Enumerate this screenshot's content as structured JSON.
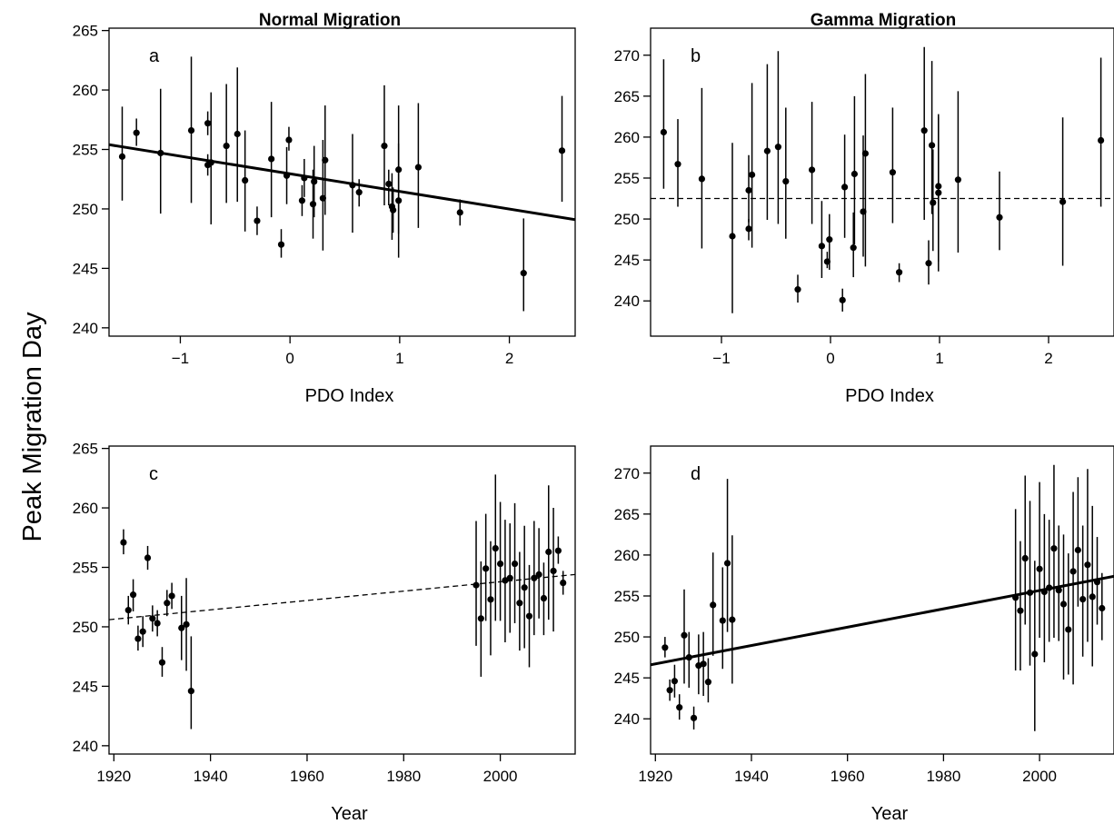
{
  "figure": {
    "ylabel": "Peak Migration Day"
  },
  "chart_data": [
    {
      "id": "a",
      "type": "scatter",
      "title": "Normal Migration",
      "panel_label": "a",
      "xlabel": "PDO Index",
      "ylabel": "Peak Migration Day",
      "xlim": [
        -1.65,
        2.6
      ],
      "ylim": [
        239.3,
        265.2
      ],
      "xticks": [
        -1,
        0,
        1,
        2
      ],
      "yticks": [
        240,
        245,
        250,
        255,
        260,
        265
      ],
      "grid": false,
      "points": [
        {
          "x": -1.53,
          "y": 254.4,
          "lo": 250.7,
          "hi": 258.6
        },
        {
          "x": -1.4,
          "y": 256.4,
          "lo": 255.3,
          "hi": 257.6
        },
        {
          "x": -1.18,
          "y": 254.7,
          "lo": 249.6,
          "hi": 260.1
        },
        {
          "x": -0.9,
          "y": 256.6,
          "lo": 250.5,
          "hi": 262.8
        },
        {
          "x": -0.75,
          "y": 257.2,
          "lo": 256.2,
          "hi": 258.2
        },
        {
          "x": -0.75,
          "y": 253.7,
          "lo": 252.8,
          "hi": 254.6
        },
        {
          "x": -0.72,
          "y": 253.9,
          "lo": 248.7,
          "hi": 259.8
        },
        {
          "x": -0.58,
          "y": 255.3,
          "lo": 250.5,
          "hi": 260.5
        },
        {
          "x": -0.48,
          "y": 256.3,
          "lo": 250.6,
          "hi": 261.9
        },
        {
          "x": -0.41,
          "y": 252.4,
          "lo": 248.1,
          "hi": 256.6
        },
        {
          "x": -0.3,
          "y": 249.0,
          "lo": 247.8,
          "hi": 250.2
        },
        {
          "x": -0.17,
          "y": 254.2,
          "lo": 249.3,
          "hi": 259.0
        },
        {
          "x": -0.08,
          "y": 247.0,
          "lo": 245.9,
          "hi": 248.3
        },
        {
          "x": -0.03,
          "y": 252.8,
          "lo": 250.4,
          "hi": 255.2
        },
        {
          "x": -0.01,
          "y": 255.8,
          "lo": 254.9,
          "hi": 256.9
        },
        {
          "x": 0.11,
          "y": 250.7,
          "lo": 249.4,
          "hi": 252.0
        },
        {
          "x": 0.13,
          "y": 252.6,
          "lo": 251.0,
          "hi": 254.2
        },
        {
          "x": 0.21,
          "y": 250.4,
          "lo": 247.5,
          "hi": 253.3
        },
        {
          "x": 0.22,
          "y": 252.3,
          "lo": 249.3,
          "hi": 255.3
        },
        {
          "x": 0.3,
          "y": 250.9,
          "lo": 246.5,
          "hi": 255.8
        },
        {
          "x": 0.32,
          "y": 254.1,
          "lo": 249.5,
          "hi": 258.7
        },
        {
          "x": 0.57,
          "y": 252.0,
          "lo": 248.0,
          "hi": 256.3
        },
        {
          "x": 0.63,
          "y": 251.4,
          "lo": 250.2,
          "hi": 252.5
        },
        {
          "x": 0.86,
          "y": 255.3,
          "lo": 250.3,
          "hi": 260.4
        },
        {
          "x": 0.9,
          "y": 252.1,
          "lo": 250.3,
          "hi": 253.3
        },
        {
          "x": 0.93,
          "y": 250.2,
          "lo": 247.4,
          "hi": 253.0
        },
        {
          "x": 0.94,
          "y": 249.9,
          "lo": 248.0,
          "hi": 251.8
        },
        {
          "x": 0.99,
          "y": 250.7,
          "lo": 245.9,
          "hi": 255.5
        },
        {
          "x": 0.99,
          "y": 253.3,
          "lo": 247.9,
          "hi": 258.7
        },
        {
          "x": 1.17,
          "y": 253.5,
          "lo": 248.4,
          "hi": 258.9
        },
        {
          "x": 1.55,
          "y": 249.7,
          "lo": 248.6,
          "hi": 250.8
        },
        {
          "x": 2.13,
          "y": 244.6,
          "lo": 241.4,
          "hi": 249.2
        },
        {
          "x": 2.48,
          "y": 254.9,
          "lo": 250.6,
          "hi": 259.5
        }
      ],
      "fit_line": {
        "style": "solid",
        "x": [
          -1.65,
          2.6
        ],
        "y": [
          255.4,
          249.1
        ]
      }
    },
    {
      "id": "b",
      "type": "scatter",
      "title": "Gamma Migration",
      "panel_label": "b",
      "xlabel": "PDO Index",
      "ylabel": "Peak Migration Day",
      "xlim": [
        -1.65,
        2.6
      ],
      "ylim": [
        235.7,
        273.3
      ],
      "xticks": [
        -1,
        0,
        1,
        2
      ],
      "yticks": [
        240,
        245,
        250,
        255,
        260,
        265,
        270
      ],
      "grid": false,
      "points": [
        {
          "x": -1.53,
          "y": 260.6,
          "lo": 253.7,
          "hi": 269.5
        },
        {
          "x": -1.4,
          "y": 256.7,
          "lo": 251.5,
          "hi": 262.2
        },
        {
          "x": -1.18,
          "y": 254.9,
          "lo": 246.4,
          "hi": 266.0
        },
        {
          "x": -0.9,
          "y": 247.9,
          "lo": 238.5,
          "hi": 259.3
        },
        {
          "x": -0.75,
          "y": 253.5,
          "lo": 249.6,
          "hi": 257.8
        },
        {
          "x": -0.75,
          "y": 248.8,
          "lo": 247.4,
          "hi": 250.0
        },
        {
          "x": -0.72,
          "y": 255.4,
          "lo": 246.5,
          "hi": 266.6
        },
        {
          "x": -0.58,
          "y": 258.3,
          "lo": 249.9,
          "hi": 268.9
        },
        {
          "x": -0.48,
          "y": 258.8,
          "lo": 249.4,
          "hi": 270.5
        },
        {
          "x": -0.41,
          "y": 254.6,
          "lo": 247.6,
          "hi": 263.6
        },
        {
          "x": -0.3,
          "y": 241.4,
          "lo": 239.8,
          "hi": 243.2
        },
        {
          "x": -0.17,
          "y": 256.0,
          "lo": 249.4,
          "hi": 264.3
        },
        {
          "x": -0.08,
          "y": 246.7,
          "lo": 242.8,
          "hi": 252.2
        },
        {
          "x": -0.03,
          "y": 244.8,
          "lo": 244.0,
          "hi": 246.0
        },
        {
          "x": -0.01,
          "y": 247.5,
          "lo": 243.8,
          "hi": 250.6
        },
        {
          "x": 0.11,
          "y": 240.1,
          "lo": 238.7,
          "hi": 241.5
        },
        {
          "x": 0.13,
          "y": 253.9,
          "lo": 247.7,
          "hi": 260.3
        },
        {
          "x": 0.21,
          "y": 246.5,
          "lo": 242.9,
          "hi": 250.8
        },
        {
          "x": 0.22,
          "y": 255.5,
          "lo": 246.9,
          "hi": 265.0
        },
        {
          "x": 0.3,
          "y": 250.9,
          "lo": 245.4,
          "hi": 260.2
        },
        {
          "x": 0.32,
          "y": 258.0,
          "lo": 244.2,
          "hi": 267.7
        },
        {
          "x": 0.57,
          "y": 255.7,
          "lo": 249.5,
          "hi": 263.6
        },
        {
          "x": 0.63,
          "y": 243.5,
          "lo": 242.3,
          "hi": 244.6
        },
        {
          "x": 0.86,
          "y": 260.8,
          "lo": 249.9,
          "hi": 271.0
        },
        {
          "x": 0.9,
          "y": 244.6,
          "lo": 242.0,
          "hi": 247.4
        },
        {
          "x": 0.93,
          "y": 259.0,
          "lo": 250.6,
          "hi": 269.3
        },
        {
          "x": 0.94,
          "y": 252.0,
          "lo": 246.1,
          "hi": 258.5
        },
        {
          "x": 0.99,
          "y": 253.2,
          "lo": 243.6,
          "hi": 262.8
        },
        {
          "x": 0.99,
          "y": 254.0,
          "lo": 244.8,
          "hi": 262.5
        },
        {
          "x": 1.17,
          "y": 254.8,
          "lo": 245.9,
          "hi": 265.6
        },
        {
          "x": 1.55,
          "y": 250.2,
          "lo": 246.2,
          "hi": 255.8
        },
        {
          "x": 2.13,
          "y": 252.1,
          "lo": 244.3,
          "hi": 262.4
        },
        {
          "x": 2.48,
          "y": 259.6,
          "lo": 251.5,
          "hi": 269.7
        }
      ],
      "fit_line": {
        "style": "dashed",
        "x": [
          -1.65,
          2.6
        ],
        "y": [
          252.5,
          252.5
        ]
      }
    },
    {
      "id": "c",
      "type": "scatter",
      "title": "",
      "panel_label": "c",
      "xlabel": "Year",
      "ylabel": "Peak Migration Day",
      "xlim": [
        1919,
        2015.5
      ],
      "ylim": [
        239.3,
        265.2
      ],
      "xticks": [
        1920,
        1940,
        1960,
        1980,
        2000
      ],
      "yticks": [
        240,
        245,
        250,
        255,
        260,
        265
      ],
      "grid": false,
      "points": [
        {
          "x": 1922,
          "y": 257.1,
          "lo": 256.1,
          "hi": 258.2
        },
        {
          "x": 1923,
          "y": 251.4,
          "lo": 250.2,
          "hi": 252.6
        },
        {
          "x": 1924,
          "y": 252.7,
          "lo": 251.3,
          "hi": 254.0
        },
        {
          "x": 1925,
          "y": 249.0,
          "lo": 248.0,
          "hi": 250.1
        },
        {
          "x": 1926,
          "y": 249.6,
          "lo": 248.3,
          "hi": 250.9
        },
        {
          "x": 1927,
          "y": 255.8,
          "lo": 254.8,
          "hi": 256.8
        },
        {
          "x": 1928,
          "y": 250.7,
          "lo": 249.6,
          "hi": 251.8
        },
        {
          "x": 1929,
          "y": 250.3,
          "lo": 249.2,
          "hi": 251.4
        },
        {
          "x": 1930,
          "y": 247.0,
          "lo": 245.8,
          "hi": 248.3
        },
        {
          "x": 1931,
          "y": 252.0,
          "lo": 250.9,
          "hi": 253.1
        },
        {
          "x": 1932,
          "y": 252.6,
          "lo": 251.5,
          "hi": 253.7
        },
        {
          "x": 1934,
          "y": 249.9,
          "lo": 247.2,
          "hi": 252.6
        },
        {
          "x": 1935,
          "y": 250.2,
          "lo": 246.3,
          "hi": 254.1
        },
        {
          "x": 1936,
          "y": 244.6,
          "lo": 241.4,
          "hi": 249.2
        },
        {
          "x": 1995,
          "y": 253.5,
          "lo": 248.4,
          "hi": 258.9
        },
        {
          "x": 1996,
          "y": 250.7,
          "lo": 245.8,
          "hi": 255.5
        },
        {
          "x": 1997,
          "y": 254.9,
          "lo": 250.5,
          "hi": 259.5
        },
        {
          "x": 1998,
          "y": 252.3,
          "lo": 247.6,
          "hi": 257.2
        },
        {
          "x": 1999,
          "y": 256.6,
          "lo": 250.5,
          "hi": 262.8
        },
        {
          "x": 2000,
          "y": 255.3,
          "lo": 250.5,
          "hi": 260.5
        },
        {
          "x": 2001,
          "y": 253.9,
          "lo": 248.7,
          "hi": 259.0
        },
        {
          "x": 2002,
          "y": 254.1,
          "lo": 249.5,
          "hi": 258.7
        },
        {
          "x": 2003,
          "y": 255.3,
          "lo": 250.3,
          "hi": 260.4
        },
        {
          "x": 2004,
          "y": 252.0,
          "lo": 248.0,
          "hi": 256.3
        },
        {
          "x": 2005,
          "y": 253.3,
          "lo": 248.2,
          "hi": 258.5
        },
        {
          "x": 2006,
          "y": 250.9,
          "lo": 246.6,
          "hi": 255.2
        },
        {
          "x": 2007,
          "y": 254.1,
          "lo": 249.3,
          "hi": 258.9
        },
        {
          "x": 2008,
          "y": 254.4,
          "lo": 250.7,
          "hi": 258.3
        },
        {
          "x": 2009,
          "y": 252.4,
          "lo": 249.3,
          "hi": 255.4
        },
        {
          "x": 2010,
          "y": 256.3,
          "lo": 250.6,
          "hi": 261.9
        },
        {
          "x": 2011,
          "y": 254.7,
          "lo": 249.6,
          "hi": 260.0
        },
        {
          "x": 2012,
          "y": 256.4,
          "lo": 255.3,
          "hi": 257.6
        },
        {
          "x": 2013,
          "y": 253.7,
          "lo": 252.7,
          "hi": 254.7
        }
      ],
      "fit_line": {
        "style": "dashed",
        "x": [
          1919,
          2015.5
        ],
        "y": [
          250.6,
          254.4
        ]
      }
    },
    {
      "id": "d",
      "type": "scatter",
      "title": "",
      "panel_label": "d",
      "xlabel": "Year",
      "ylabel": "Peak Migration Day",
      "xlim": [
        1919,
        2015.5
      ],
      "ylim": [
        235.7,
        273.3
      ],
      "xticks": [
        1920,
        1940,
        1960,
        1980,
        2000
      ],
      "yticks": [
        240,
        245,
        250,
        255,
        260,
        265,
        270
      ],
      "grid": false,
      "points": [
        {
          "x": 1922,
          "y": 248.7,
          "lo": 247.5,
          "hi": 250.0
        },
        {
          "x": 1923,
          "y": 243.5,
          "lo": 242.2,
          "hi": 244.8
        },
        {
          "x": 1924,
          "y": 244.6,
          "lo": 242.6,
          "hi": 246.6
        },
        {
          "x": 1925,
          "y": 241.4,
          "lo": 239.9,
          "hi": 243.0
        },
        {
          "x": 1926,
          "y": 250.2,
          "lo": 244.3,
          "hi": 255.8
        },
        {
          "x": 1927,
          "y": 247.5,
          "lo": 243.8,
          "hi": 250.6
        },
        {
          "x": 1928,
          "y": 240.1,
          "lo": 238.7,
          "hi": 241.5
        },
        {
          "x": 1929,
          "y": 246.5,
          "lo": 243.0,
          "hi": 250.3
        },
        {
          "x": 1930,
          "y": 246.7,
          "lo": 242.8,
          "hi": 250.6
        },
        {
          "x": 1931,
          "y": 244.5,
          "lo": 242.0,
          "hi": 247.4
        },
        {
          "x": 1932,
          "y": 253.9,
          "lo": 247.7,
          "hi": 260.3
        },
        {
          "x": 1934,
          "y": 252.0,
          "lo": 246.1,
          "hi": 258.5
        },
        {
          "x": 1935,
          "y": 259.0,
          "lo": 250.6,
          "hi": 269.3
        },
        {
          "x": 1936,
          "y": 252.1,
          "lo": 244.3,
          "hi": 262.4
        },
        {
          "x": 1995,
          "y": 254.8,
          "lo": 245.9,
          "hi": 265.6
        },
        {
          "x": 1996,
          "y": 253.2,
          "lo": 245.9,
          "hi": 261.7
        },
        {
          "x": 1997,
          "y": 259.6,
          "lo": 251.5,
          "hi": 269.7
        },
        {
          "x": 1998,
          "y": 255.4,
          "lo": 246.5,
          "hi": 266.6
        },
        {
          "x": 1999,
          "y": 247.9,
          "lo": 238.5,
          "hi": 259.3
        },
        {
          "x": 2000,
          "y": 258.3,
          "lo": 249.9,
          "hi": 268.9
        },
        {
          "x": 2001,
          "y": 255.5,
          "lo": 246.9,
          "hi": 265.0
        },
        {
          "x": 2002,
          "y": 256.0,
          "lo": 249.4,
          "hi": 264.3
        },
        {
          "x": 2003,
          "y": 260.8,
          "lo": 249.9,
          "hi": 271.0
        },
        {
          "x": 2004,
          "y": 255.7,
          "lo": 249.5,
          "hi": 263.6
        },
        {
          "x": 2005,
          "y": 254.0,
          "lo": 244.8,
          "hi": 262.5
        },
        {
          "x": 2006,
          "y": 250.9,
          "lo": 245.4,
          "hi": 260.2
        },
        {
          "x": 2007,
          "y": 258.0,
          "lo": 244.2,
          "hi": 267.7
        },
        {
          "x": 2008,
          "y": 260.6,
          "lo": 253.7,
          "hi": 269.5
        },
        {
          "x": 2009,
          "y": 254.6,
          "lo": 247.6,
          "hi": 263.6
        },
        {
          "x": 2010,
          "y": 258.8,
          "lo": 249.4,
          "hi": 270.5
        },
        {
          "x": 2011,
          "y": 254.9,
          "lo": 246.4,
          "hi": 266.0
        },
        {
          "x": 2012,
          "y": 256.7,
          "lo": 251.5,
          "hi": 262.2
        },
        {
          "x": 2013,
          "y": 253.5,
          "lo": 249.6,
          "hi": 257.8
        }
      ],
      "fit_line": {
        "style": "solid",
        "x": [
          1919,
          2015.5
        ],
        "y": [
          246.6,
          257.4
        ]
      }
    }
  ]
}
